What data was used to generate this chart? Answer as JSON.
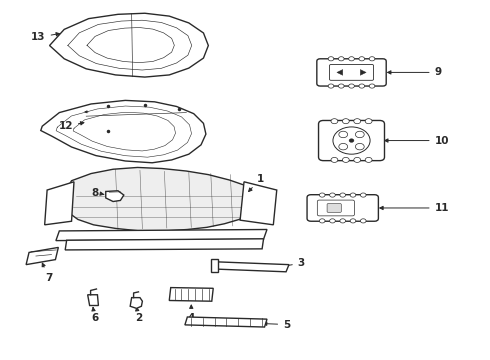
{
  "bg_color": "#ffffff",
  "line_color": "#2a2a2a",
  "lw": 1.0,
  "fig_width": 4.9,
  "fig_height": 3.6,
  "dpi": 100,
  "font_sz": 7.5
}
